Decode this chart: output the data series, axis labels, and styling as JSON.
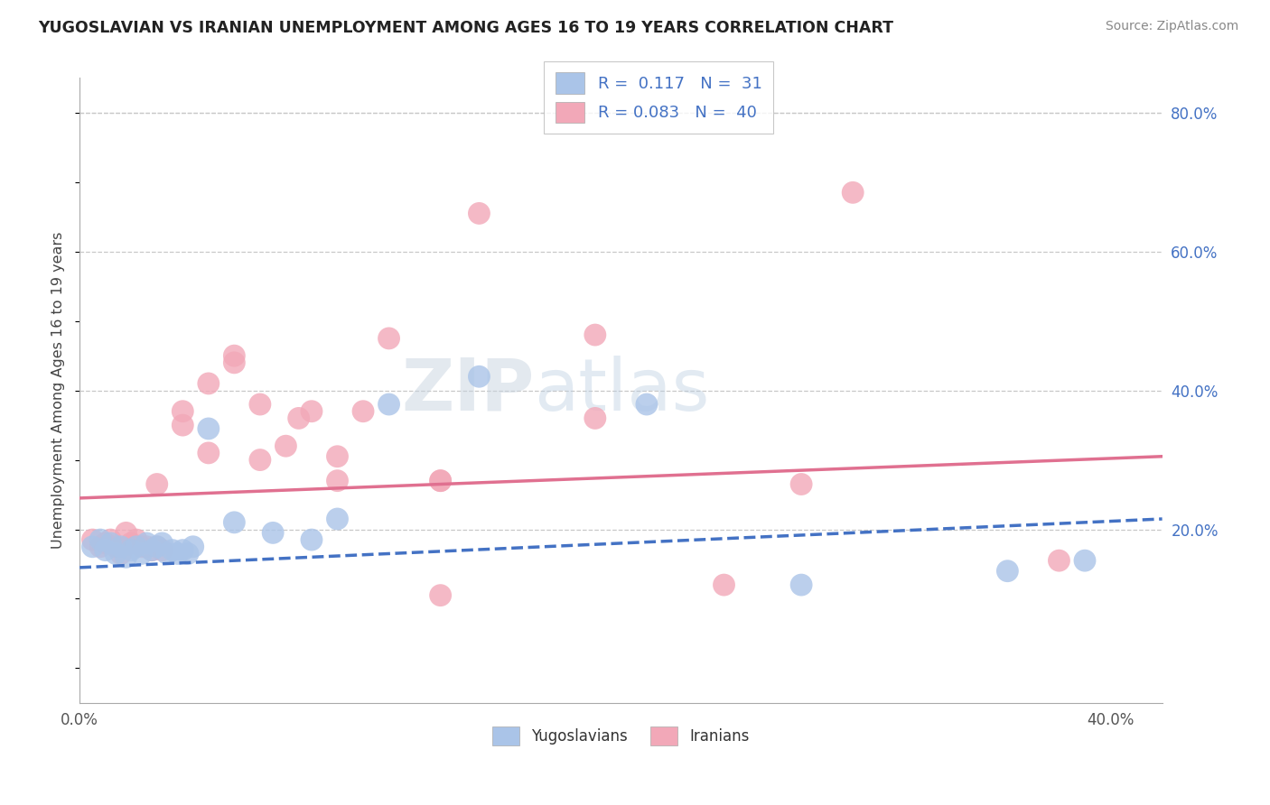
{
  "title": "YUGOSLAVIAN VS IRANIAN UNEMPLOYMENT AMONG AGES 16 TO 19 YEARS CORRELATION CHART",
  "source": "Source: ZipAtlas.com",
  "ylabel": "Unemployment Among Ages 16 to 19 years",
  "xlim": [
    0.0,
    0.42
  ],
  "ylim": [
    -0.05,
    0.85
  ],
  "xticks": [
    0.0,
    0.1,
    0.2,
    0.3,
    0.4
  ],
  "xticklabels_show": [
    "0.0%",
    "",
    "",
    "",
    "40.0%"
  ],
  "yticks_right": [
    0.2,
    0.4,
    0.6,
    0.8
  ],
  "yticklabels_right": [
    "20.0%",
    "40.0%",
    "60.0%",
    "80.0%"
  ],
  "grid_color": "#c8c8c8",
  "background_color": "#ffffff",
  "yugoslavian_color": "#aac4e8",
  "iranian_color": "#f2a8b8",
  "yug_R": "0.117",
  "yug_N": "31",
  "iran_R": "0.083",
  "iran_N": "40",
  "legend_label1": "Yugoslavians",
  "legend_label2": "Iranians",
  "yug_line_color": "#4472c4",
  "iran_line_color": "#e07090",
  "yug_scatter_x": [
    0.005,
    0.008,
    0.01,
    0.012,
    0.014,
    0.016,
    0.018,
    0.02,
    0.022,
    0.024,
    0.026,
    0.028,
    0.03,
    0.032,
    0.034,
    0.036,
    0.038,
    0.04,
    0.042,
    0.044,
    0.05,
    0.06,
    0.075,
    0.09,
    0.1,
    0.12,
    0.155,
    0.22,
    0.28,
    0.36,
    0.39
  ],
  "yug_scatter_y": [
    0.175,
    0.185,
    0.17,
    0.18,
    0.165,
    0.175,
    0.16,
    0.17,
    0.175,
    0.165,
    0.18,
    0.17,
    0.175,
    0.18,
    0.165,
    0.17,
    0.165,
    0.17,
    0.165,
    0.175,
    0.345,
    0.21,
    0.195,
    0.185,
    0.215,
    0.38,
    0.42,
    0.38,
    0.12,
    0.14,
    0.155
  ],
  "iran_scatter_x": [
    0.005,
    0.008,
    0.01,
    0.012,
    0.014,
    0.016,
    0.018,
    0.02,
    0.022,
    0.024,
    0.026,
    0.028,
    0.03,
    0.032,
    0.04,
    0.05,
    0.06,
    0.07,
    0.08,
    0.09,
    0.1,
    0.11,
    0.12,
    0.14,
    0.155,
    0.2,
    0.25,
    0.28,
    0.3,
    0.38,
    0.03,
    0.04,
    0.05,
    0.06,
    0.07,
    0.085,
    0.1,
    0.14,
    0.2,
    0.14
  ],
  "iran_scatter_y": [
    0.185,
    0.175,
    0.18,
    0.185,
    0.175,
    0.165,
    0.195,
    0.18,
    0.185,
    0.175,
    0.175,
    0.17,
    0.175,
    0.17,
    0.35,
    0.41,
    0.45,
    0.38,
    0.32,
    0.37,
    0.305,
    0.37,
    0.475,
    0.27,
    0.655,
    0.48,
    0.12,
    0.265,
    0.685,
    0.155,
    0.265,
    0.37,
    0.31,
    0.44,
    0.3,
    0.36,
    0.27,
    0.105,
    0.36,
    0.27
  ],
  "yug_line_x": [
    0.0,
    0.42
  ],
  "yug_line_y": [
    0.145,
    0.215
  ],
  "iran_line_x": [
    0.0,
    0.42
  ],
  "iran_line_y": [
    0.245,
    0.305
  ],
  "watermark_zip": "ZIP",
  "watermark_atlas": "atlas",
  "watermark_color": "#c8d8e8"
}
